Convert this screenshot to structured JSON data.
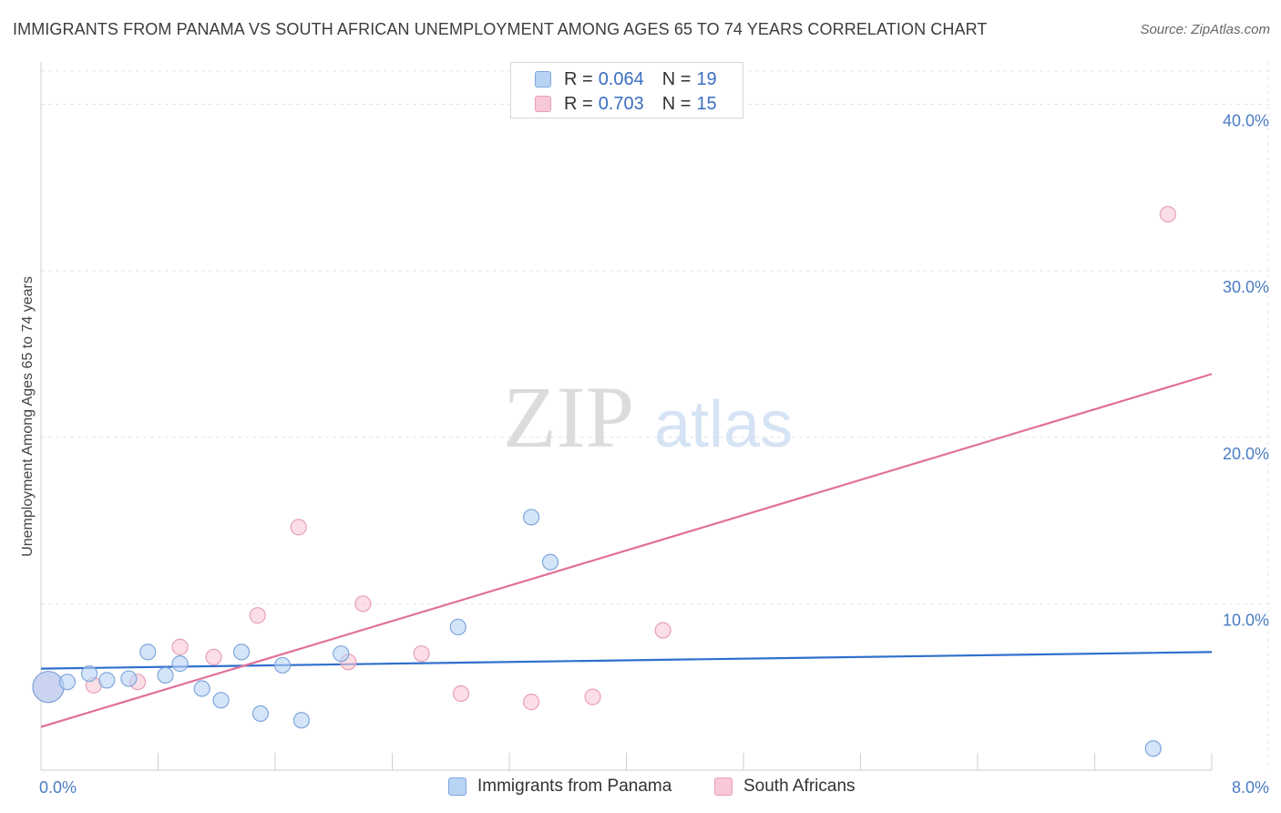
{
  "title": "IMMIGRANTS FROM PANAMA VS SOUTH AFRICAN UNEMPLOYMENT AMONG AGES 65 TO 74 YEARS CORRELATION CHART",
  "source": "Source: ZipAtlas.com",
  "watermark": {
    "zip": "ZIP",
    "atlas": "atlas"
  },
  "colors": {
    "blue_fill": "#b9d3f5",
    "blue_stroke": "#7ea6dc",
    "blue_line": "#2f6fcc",
    "pink_fill": "#f8c8d6",
    "pink_stroke": "#e8a0b6",
    "pink_line": "#e0709a",
    "tick_text": "#4a7cc4",
    "grid": "#e4e4e4"
  },
  "legend": {
    "rows": [
      {
        "r_label": "R =",
        "r_value": "0.064",
        "n_label": "N =",
        "n_value": "19"
      },
      {
        "r_label": "R =",
        "r_value": "0.703",
        "n_label": "N =",
        "n_value": "15"
      }
    ]
  },
  "bottom_legend": {
    "series_a": "Immigrants from Panama",
    "series_b": "South Africans"
  },
  "chart_data": {
    "type": "scatter",
    "title": "IMMIGRANTS FROM PANAMA VS SOUTH AFRICAN UNEMPLOYMENT AMONG AGES 65 TO 74 YEARS CORRELATION CHART",
    "xlabel": "",
    "ylabel": "Unemployment Among Ages 65 to 74 years",
    "xlim": [
      0,
      8
    ],
    "ylim": [
      0,
      42
    ],
    "x_tick_labels": [
      "0.0%",
      "8.0%"
    ],
    "y_ticks": [
      10,
      20,
      30,
      40
    ],
    "y_tick_labels": [
      "10.0%",
      "20.0%",
      "30.0%",
      "40.0%"
    ],
    "grid": true,
    "legend_position": "top-center",
    "series": [
      {
        "name": "Immigrants from Panama",
        "r": 0.064,
        "n": 19,
        "trend": {
          "x": [
            0,
            8
          ],
          "y": [
            6.1,
            7.1
          ]
        },
        "points": [
          {
            "x": 0.05,
            "y": 5.0,
            "big": true
          },
          {
            "x": 0.18,
            "y": 5.3
          },
          {
            "x": 0.33,
            "y": 5.8
          },
          {
            "x": 0.45,
            "y": 5.4
          },
          {
            "x": 0.6,
            "y": 5.5
          },
          {
            "x": 0.73,
            "y": 7.1
          },
          {
            "x": 0.85,
            "y": 5.7
          },
          {
            "x": 0.95,
            "y": 6.4
          },
          {
            "x": 1.1,
            "y": 4.9
          },
          {
            "x": 1.23,
            "y": 4.2
          },
          {
            "x": 1.37,
            "y": 7.1
          },
          {
            "x": 1.5,
            "y": 3.4
          },
          {
            "x": 1.65,
            "y": 6.3
          },
          {
            "x": 1.78,
            "y": 3.0
          },
          {
            "x": 2.05,
            "y": 7.0
          },
          {
            "x": 2.85,
            "y": 8.6
          },
          {
            "x": 3.35,
            "y": 15.2
          },
          {
            "x": 3.48,
            "y": 12.5
          },
          {
            "x": 7.6,
            "y": 1.3
          }
        ]
      },
      {
        "name": "South Africans",
        "r": 0.703,
        "n": 15,
        "trend": {
          "x": [
            0,
            8
          ],
          "y": [
            2.6,
            23.8
          ]
        },
        "points": [
          {
            "x": 0.05,
            "y": 5.0,
            "big": true
          },
          {
            "x": 0.36,
            "y": 5.1
          },
          {
            "x": 0.66,
            "y": 5.3
          },
          {
            "x": 0.95,
            "y": 7.4
          },
          {
            "x": 1.18,
            "y": 6.8
          },
          {
            "x": 1.48,
            "y": 9.3
          },
          {
            "x": 1.76,
            "y": 14.6
          },
          {
            "x": 2.1,
            "y": 6.5
          },
          {
            "x": 2.2,
            "y": 10.0
          },
          {
            "x": 2.6,
            "y": 7.0
          },
          {
            "x": 2.87,
            "y": 4.6
          },
          {
            "x": 3.35,
            "y": 4.1
          },
          {
            "x": 3.77,
            "y": 4.4
          },
          {
            "x": 4.25,
            "y": 8.4
          },
          {
            "x": 7.7,
            "y": 33.4
          }
        ]
      }
    ]
  }
}
